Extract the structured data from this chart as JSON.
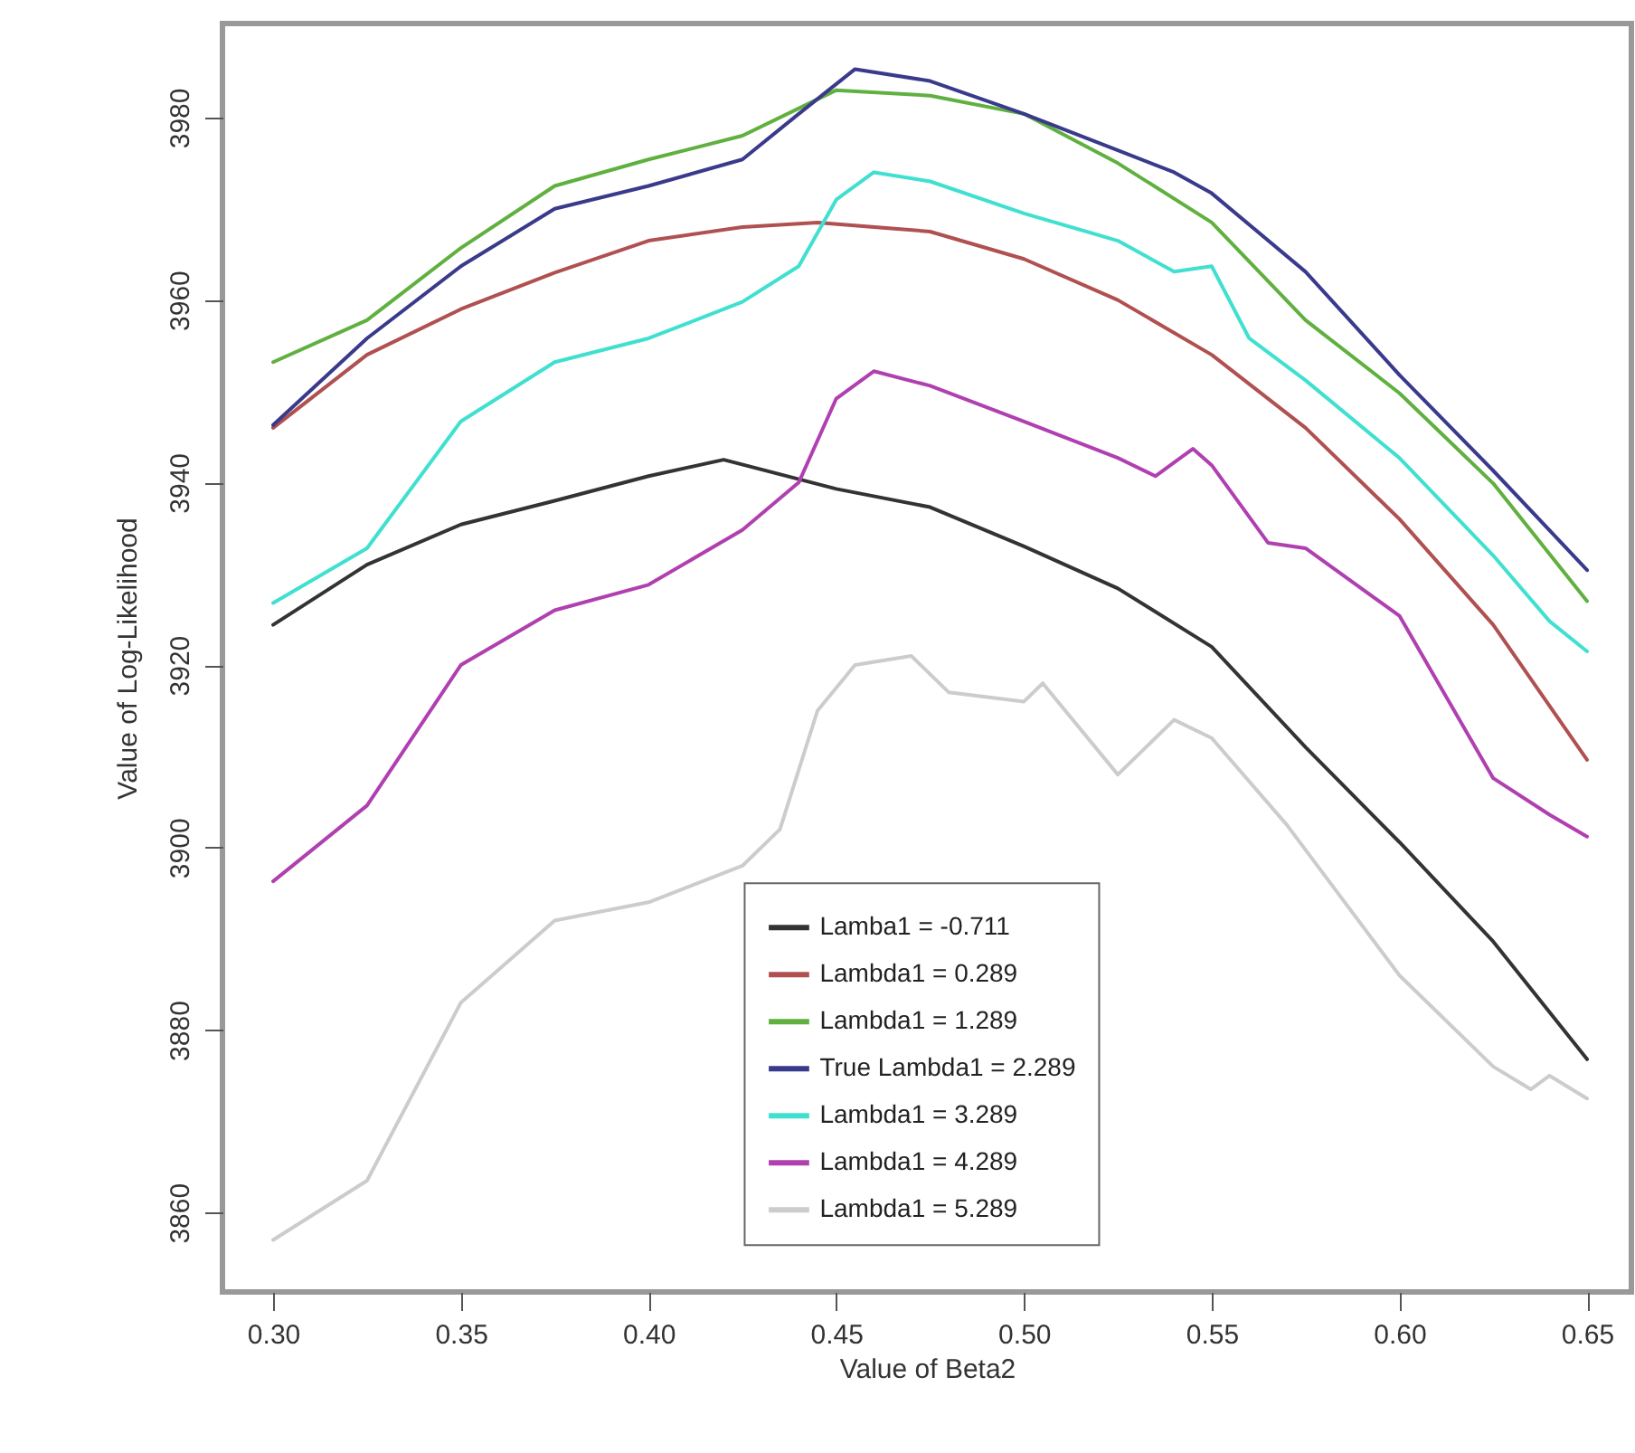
{
  "chart_data": {
    "type": "line",
    "xlabel": "Value of Beta2",
    "ylabel": "Value of Log-Likelihood",
    "xlim": [
      0.2865,
      0.6618
    ],
    "xticks": [
      {
        "value": 0.3,
        "label": "0.30"
      },
      {
        "value": 0.35,
        "label": "0.35"
      },
      {
        "value": 0.4,
        "label": "0.40"
      },
      {
        "value": 0.45,
        "label": "0.45"
      },
      {
        "value": 0.5,
        "label": "0.50"
      },
      {
        "value": 0.55,
        "label": "0.55"
      },
      {
        "value": 0.6,
        "label": "0.60"
      },
      {
        "value": 0.65,
        "label": "0.65"
      }
    ],
    "ylim": [
      3851.3,
      3990.3
    ],
    "yticks": [
      3860,
      3880,
      3900,
      3920,
      3940,
      3960,
      3980
    ],
    "grid": false,
    "legend": "bottom",
    "marker": "none",
    "line_style": "solid",
    "series": [
      {
        "name": "Lamba1 = -0.711",
        "color": "#333333",
        "x": [
          0.3,
          0.325,
          0.35,
          0.375,
          0.4,
          0.42,
          0.45,
          0.475,
          0.5,
          0.525,
          0.55,
          0.575,
          0.6,
          0.625,
          0.65
        ],
        "values": [
          3924.4,
          3931,
          3935.4,
          3938,
          3940.7,
          3942.5,
          3939.3,
          3937.3,
          3933,
          3928.4,
          3922,
          3911,
          3900.6,
          3889.7,
          3876.8
        ]
      },
      {
        "name": "Lambda1 = 0.289",
        "color": "#b05050",
        "x": [
          0.3,
          0.325,
          0.35,
          0.375,
          0.4,
          0.425,
          0.445,
          0.475,
          0.5,
          0.525,
          0.55,
          0.575,
          0.6,
          0.625,
          0.65
        ],
        "values": [
          3946,
          3954,
          3959,
          3963,
          3966.5,
          3968,
          3968.5,
          3967.5,
          3964.5,
          3960,
          3954,
          3946,
          3936,
          3924.4,
          3909.6
        ]
      },
      {
        "name": "Lambda1 = 1.289",
        "color": "#60b040",
        "x": [
          0.3,
          0.325,
          0.35,
          0.375,
          0.4,
          0.425,
          0.45,
          0.475,
          0.5,
          0.525,
          0.55,
          0.575,
          0.6,
          0.625,
          0.65
        ],
        "values": [
          3953.2,
          3957.8,
          3965.7,
          3972.5,
          3975.4,
          3978,
          3983,
          3982.4,
          3980.4,
          3975,
          3968.5,
          3957.8,
          3949.8,
          3939.9,
          3927
        ]
      },
      {
        "name": "True Lambda1 = 2.289",
        "color": "#3a3a8c",
        "x": [
          0.3,
          0.325,
          0.35,
          0.375,
          0.4,
          0.425,
          0.44,
          0.455,
          0.475,
          0.5,
          0.525,
          0.54,
          0.55,
          0.575,
          0.6,
          0.625,
          0.65
        ],
        "values": [
          3946.3,
          3955.8,
          3963.7,
          3970,
          3972.5,
          3975.4,
          3980.4,
          3985.3,
          3984,
          3980.4,
          3976.4,
          3974,
          3971.7,
          3963.1,
          3951.8,
          3941.3,
          3930.4
        ]
      },
      {
        "name": "Lambda1 = 3.289",
        "color": "#40e0d0",
        "x": [
          0.3,
          0.325,
          0.35,
          0.375,
          0.4,
          0.425,
          0.44,
          0.45,
          0.46,
          0.475,
          0.5,
          0.525,
          0.54,
          0.55,
          0.56,
          0.575,
          0.6,
          0.625,
          0.64,
          0.65
        ],
        "values": [
          3926.8,
          3932.8,
          3946.7,
          3953.2,
          3955.8,
          3959.8,
          3963.7,
          3971,
          3974,
          3973,
          3969.5,
          3966.5,
          3963.1,
          3963.7,
          3955.8,
          3951.2,
          3942.7,
          3932,
          3924.8,
          3921.5
        ]
      },
      {
        "name": "Lambda1 = 4.289",
        "color": "#b040b0",
        "x": [
          0.3,
          0.325,
          0.35,
          0.375,
          0.4,
          0.425,
          0.44,
          0.45,
          0.46,
          0.475,
          0.5,
          0.525,
          0.535,
          0.545,
          0.55,
          0.565,
          0.575,
          0.6,
          0.625,
          0.64,
          0.65
        ],
        "values": [
          3896.3,
          3904.6,
          3920,
          3926,
          3928.8,
          3934.8,
          3940,
          3949.2,
          3952.2,
          3950.6,
          3946.7,
          3942.7,
          3940.7,
          3943.7,
          3941.9,
          3933.4,
          3932.8,
          3925.4,
          3907.6,
          3903.6,
          3901.2
        ]
      },
      {
        "name": "Lambda1 = 5.289",
        "color": "#cccccc",
        "x": [
          0.3,
          0.325,
          0.35,
          0.375,
          0.4,
          0.425,
          0.435,
          0.445,
          0.455,
          0.47,
          0.48,
          0.5,
          0.505,
          0.525,
          0.54,
          0.55,
          0.57,
          0.6,
          0.625,
          0.635,
          0.64,
          0.65
        ],
        "values": [
          3857,
          3863.5,
          3883,
          3892,
          3894,
          3898,
          3902,
          3915,
          3920,
          3921,
          3917,
          3916,
          3918,
          3908,
          3914,
          3912,
          3902.5,
          3886,
          3876,
          3873.5,
          3875,
          3872.5
        ]
      }
    ]
  }
}
